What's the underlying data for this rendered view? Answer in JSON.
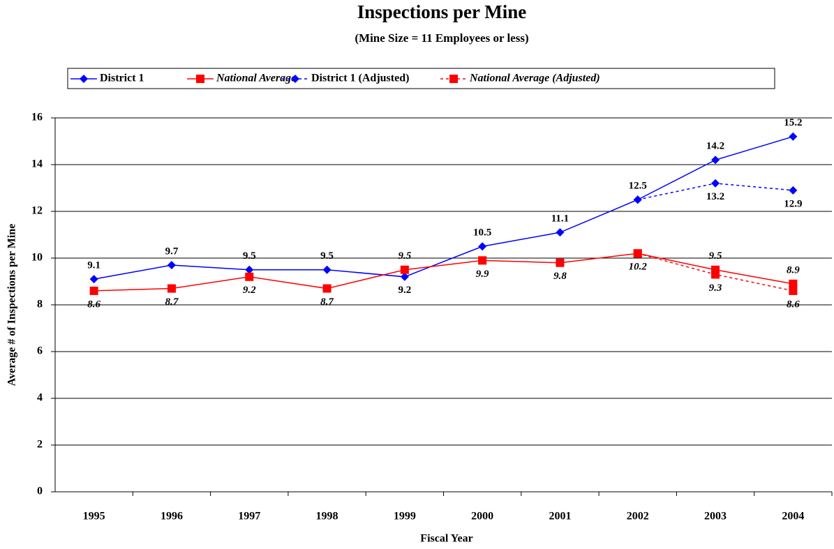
{
  "chart_data": {
    "type": "line",
    "title": "Inspections per Mine",
    "subtitle": "(Mine Size = 11 Employees or less)",
    "x_label": "Fiscal Year",
    "y_label": "Average # of Inspections per Mine",
    "categories": [
      "1995",
      "1996",
      "1997",
      "1998",
      "1999",
      "2000",
      "2001",
      "2002",
      "2003",
      "2004"
    ],
    "ylim": [
      0,
      16
    ],
    "yticks": [
      0,
      2,
      4,
      6,
      8,
      10,
      12,
      14,
      16
    ],
    "grid": true,
    "legend": "top",
    "series": [
      {
        "name": "District 1",
        "color": "#0000ff",
        "marker": "diamond",
        "dashed": false,
        "italic": false,
        "values": [
          9.1,
          9.7,
          9.5,
          9.5,
          9.2,
          10.5,
          11.1,
          12.5,
          14.2,
          15.2
        ]
      },
      {
        "name": "National Average",
        "color": "#ff0000",
        "marker": "square",
        "dashed": false,
        "italic": true,
        "values": [
          8.6,
          8.7,
          9.2,
          8.7,
          9.5,
          9.9,
          9.8,
          10.2,
          9.5,
          8.9
        ]
      },
      {
        "name": "District 1 (Adjusted)",
        "color": "#0000ff",
        "marker": "diamond",
        "dashed": true,
        "italic": false,
        "values": [
          null,
          null,
          null,
          null,
          null,
          null,
          null,
          12.5,
          13.2,
          12.9
        ]
      },
      {
        "name": "National Average (Adjusted)",
        "color": "#ff0000",
        "marker": "square",
        "dashed": true,
        "italic": true,
        "values": [
          null,
          null,
          null,
          null,
          null,
          null,
          null,
          10.2,
          9.3,
          8.6
        ]
      }
    ]
  }
}
